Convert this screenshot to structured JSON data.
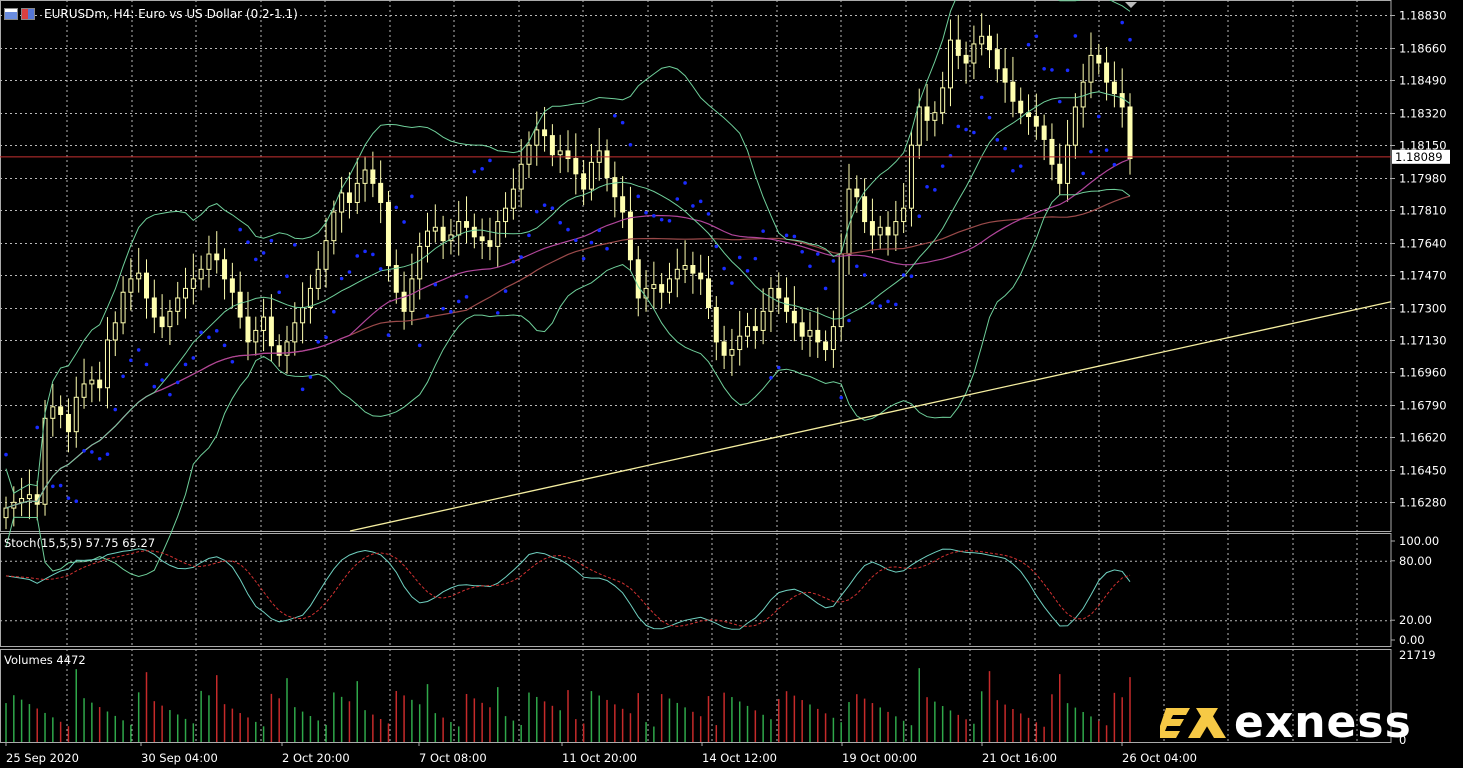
{
  "header": {
    "symbol_line": "EURUSDm, H4:  Euro vs US Dollar (0.2-1.1)"
  },
  "colors": {
    "background": "#000000",
    "grid": "#b8b8b8",
    "candle": "#ffffb0",
    "sar_dot": "#1a2cff",
    "bollinger": "#6fcf9a",
    "ma_brown": "#9b4a4a",
    "ma_purple": "#b0459a",
    "trendline": "#f5eea0",
    "price_line": "#c83232",
    "stoch_main": "#6fd0c0",
    "stoch_signal": "#d03030",
    "vol_up": "#2fa84a",
    "vol_down": "#c62a2a"
  },
  "price_axis": {
    "labels": [
      "1.18830",
      "1.18660",
      "1.18490",
      "1.18320",
      "1.18150",
      "1.17980",
      "1.17810",
      "1.17640",
      "1.17470",
      "1.17300",
      "1.17130",
      "1.16960",
      "1.16790",
      "1.16620",
      "1.16450",
      "1.16280"
    ],
    "current_price": "1.18089"
  },
  "stoch_panel": {
    "label": "Stoch(15,5,5) 57.75 65.27",
    "axis_labels": [
      "100.00",
      "80.00",
      "20.00",
      "0.00"
    ]
  },
  "volume_panel": {
    "label": "Volumes 4472",
    "axis_labels": [
      "21719",
      "0"
    ]
  },
  "time_axis": {
    "labels": [
      "25 Sep 2020",
      "30 Sep 04:00",
      "2 Oct 20:00",
      "7 Oct 08:00",
      "11 Oct 20:00",
      "14 Oct 12:00",
      "19 Oct 00:00",
      "21 Oct 16:00",
      "26 Oct 04:00"
    ]
  },
  "branding": {
    "logo_icon": "exness-ex-mark-icon",
    "logo_text": "exness"
  },
  "chart_data": {
    "type": "candlestick",
    "symbol": "EURUSDm",
    "timeframe": "H4",
    "ylim": [
      1.1613,
      1.1891
    ],
    "closes": [
      1.1625,
      1.1628,
      1.163,
      1.1632,
      1.1627,
      1.1672,
      1.1678,
      1.1674,
      1.1665,
      1.1683,
      1.169,
      1.1692,
      1.1688,
      1.1713,
      1.1722,
      1.1738,
      1.1745,
      1.1748,
      1.1735,
      1.1725,
      1.172,
      1.1728,
      1.1735,
      1.174,
      1.1745,
      1.175,
      1.1758,
      1.1755,
      1.1745,
      1.1738,
      1.1725,
      1.1712,
      1.1718,
      1.1725,
      1.171,
      1.1705,
      1.1712,
      1.1722,
      1.173,
      1.174,
      1.175,
      1.1765,
      1.178,
      1.179,
      1.1785,
      1.1795,
      1.1802,
      1.1795,
      1.1785,
      1.1752,
      1.1738,
      1.1728,
      1.1745,
      1.1762,
      1.177,
      1.1772,
      1.1765,
      1.1768,
      1.1775,
      1.1772,
      1.1767,
      1.1765,
      1.1762,
      1.1775,
      1.1782,
      1.1792,
      1.1805,
      1.1815,
      1.1823,
      1.182,
      1.181,
      1.1812,
      1.1808,
      1.18,
      1.1792,
      1.1806,
      1.1812,
      1.1798,
      1.1788,
      1.178,
      1.1755,
      1.1735,
      1.174,
      1.1742,
      1.1738,
      1.1745,
      1.175,
      1.1752,
      1.1748,
      1.1745,
      1.173,
      1.1712,
      1.1705,
      1.1708,
      1.1715,
      1.172,
      1.1718,
      1.1728,
      1.174,
      1.1735,
      1.1728,
      1.1722,
      1.1715,
      1.1718,
      1.1712,
      1.1708,
      1.172,
      1.1758,
      1.1792,
      1.1788,
      1.1775,
      1.1768,
      1.1772,
      1.1768,
      1.1775,
      1.1782,
      1.1815,
      1.1835,
      1.1828,
      1.1832,
      1.1845,
      1.187,
      1.1862,
      1.1858,
      1.1868,
      1.1872,
      1.1865,
      1.1855,
      1.1848,
      1.1838,
      1.1832,
      1.183,
      1.1825,
      1.1818,
      1.1805,
      1.1795,
      1.1815,
      1.1835,
      1.1848,
      1.1862,
      1.1858,
      1.1848,
      1.1842,
      1.1835,
      1.1808
    ],
    "current_price": 1.18089,
    "indicators": [
      "Parabolic SAR",
      "Bollinger Bands",
      "Moving Averages"
    ],
    "stochastic": {
      "params": "15,5,5",
      "main": 57.75,
      "signal": 65.27,
      "levels": [
        20,
        80
      ]
    },
    "volume_last": 4472,
    "volume_max_label": 21719
  }
}
